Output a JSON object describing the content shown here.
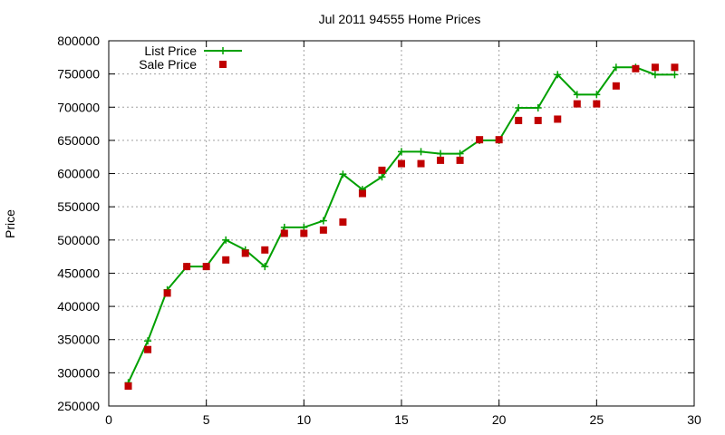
{
  "chart_data": {
    "type": "line",
    "title": "Jul 2011 94555 Home Prices",
    "xlabel": "",
    "ylabel": "Price",
    "xlim": [
      0,
      30
    ],
    "ylim": [
      250000,
      800000
    ],
    "x_ticks": [
      0,
      5,
      10,
      15,
      20,
      25,
      30
    ],
    "y_ticks": [
      250000,
      300000,
      350000,
      400000,
      450000,
      500000,
      550000,
      600000,
      650000,
      700000,
      750000,
      800000
    ],
    "grid": true,
    "legend_position": "top-left",
    "series": [
      {
        "name": "List Price",
        "style": "line+points",
        "color": "#00a000",
        "marker": "plus",
        "x": [
          1,
          2,
          3,
          4,
          5,
          6,
          7,
          8,
          9,
          10,
          11,
          12,
          13,
          14,
          15,
          16,
          17,
          18,
          19,
          20,
          21,
          22,
          23,
          24,
          25,
          26,
          27,
          28,
          29
        ],
        "values": [
          285000,
          348000,
          425000,
          460000,
          460000,
          500000,
          485000,
          460000,
          519000,
          519000,
          529000,
          599000,
          576000,
          595000,
          633000,
          633000,
          630000,
          630000,
          650000,
          650000,
          699000,
          699000,
          749000,
          719000,
          719000,
          760000,
          760000,
          749000,
          749000
        ]
      },
      {
        "name": "Sale Price",
        "style": "points",
        "color": "#c00000",
        "marker": "square",
        "x": [
          1,
          2,
          3,
          4,
          5,
          6,
          7,
          8,
          9,
          10,
          11,
          12,
          13,
          14,
          15,
          16,
          17,
          18,
          19,
          20,
          21,
          22,
          23,
          24,
          25,
          26,
          27,
          28,
          29
        ],
        "values": [
          280000,
          335000,
          420000,
          460000,
          460000,
          470000,
          480000,
          485000,
          510000,
          510000,
          515000,
          527000,
          570000,
          605000,
          615000,
          615000,
          620000,
          620000,
          651000,
          651000,
          680000,
          680000,
          682000,
          705000,
          705000,
          732000,
          758000,
          760000,
          760000
        ]
      }
    ]
  }
}
